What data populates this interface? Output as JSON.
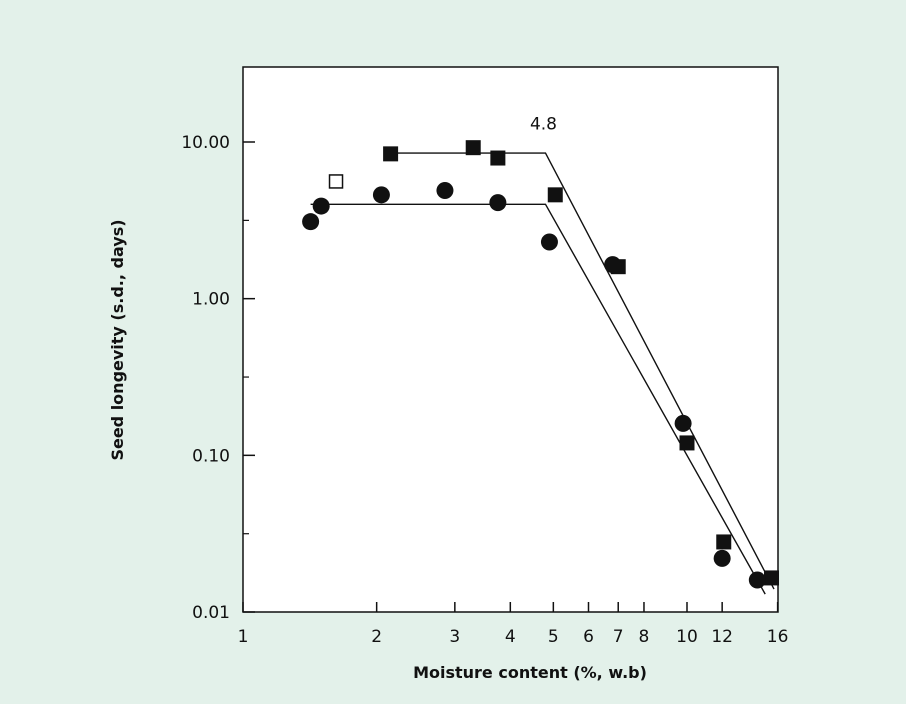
{
  "chart_data": {
    "type": "scatter",
    "title": "",
    "xlabel": "Moisture content (%, w.b)",
    "ylabel": "Seed longevity (s.d., days)",
    "x_scale": "log",
    "y_scale": "log",
    "xlim": [
      1,
      17
    ],
    "ylim": [
      0.01,
      25
    ],
    "x_ticks": [
      1,
      2,
      3,
      4,
      5,
      6,
      7,
      8,
      10,
      12,
      16
    ],
    "x_tick_labels": [
      "1",
      "2",
      "3",
      "4",
      "5",
      "6",
      "7",
      "8",
      "10",
      "12",
      "16"
    ],
    "y_ticks": [
      0.01,
      0.1,
      1,
      10
    ],
    "y_tick_labels": [
      "0.01",
      "0.10",
      "1.00",
      "10.00"
    ],
    "grid": false,
    "series": [
      {
        "marker": "filled-square",
        "color": "#111111",
        "x": [
          2.15,
          3.3,
          3.75,
          5.05,
          7.0,
          10.0,
          12.1,
          15.5
        ],
        "y": [
          8.4,
          9.2,
          7.9,
          4.6,
          1.6,
          0.12,
          0.028,
          0.0165
        ]
      },
      {
        "marker": "filled-circle",
        "color": "#111111",
        "x": [
          1.42,
          1.5,
          2.05,
          2.85,
          3.75,
          4.9,
          6.8,
          9.8,
          12.0,
          14.4
        ],
        "y": [
          3.1,
          3.9,
          4.6,
          4.9,
          4.1,
          2.3,
          1.65,
          0.16,
          0.022,
          0.016
        ]
      },
      {
        "marker": "open-square",
        "color": "#111111",
        "x": [
          1.62
        ],
        "y": [
          5.6
        ]
      }
    ],
    "lines": [
      {
        "x": [
          2.15,
          4.8,
          15.7
        ],
        "y": [
          8.5,
          8.5,
          0.014
        ]
      },
      {
        "x": [
          1.42,
          4.8,
          15.0
        ],
        "y": [
          4.0,
          4.0,
          0.013
        ]
      }
    ],
    "annotations": [
      {
        "text": "4.8",
        "x": 4.8,
        "y": 12.0
      }
    ]
  }
}
